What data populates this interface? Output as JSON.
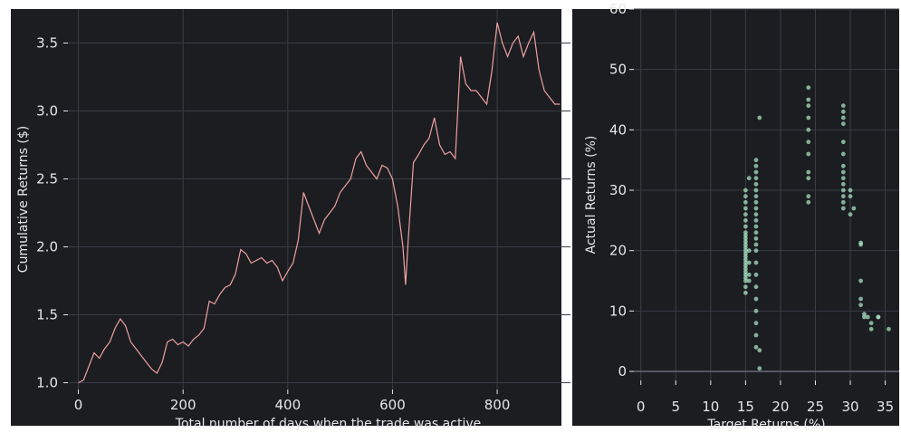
{
  "theme": {
    "panel_bg": "#1b1d21",
    "grid": "#3a3d44",
    "text": "#e6e6e6",
    "line_color": "#f0a0a0",
    "scatter_color": "#a8e0c0"
  },
  "chart_data": [
    {
      "type": "line",
      "xlabel": "Total number of days when the trade was active",
      "ylabel": "Cumulative Returns ($)",
      "xlim": [
        -20,
        940
      ],
      "ylim": [
        0.95,
        3.75
      ],
      "xticks": [
        0,
        200,
        400,
        600,
        800
      ],
      "yticks": [
        1.0,
        1.5,
        2.0,
        2.5,
        3.0,
        3.5
      ],
      "xticklabels": [
        "0",
        "200",
        "400",
        "600",
        "800"
      ],
      "yticklabels": [
        "1.0",
        "1.5",
        "2.0",
        "2.5",
        "3.0",
        "3.5"
      ],
      "grid": true,
      "series": [
        {
          "x": [
            0,
            10,
            20,
            30,
            40,
            50,
            60,
            70,
            80,
            90,
            100,
            110,
            120,
            130,
            140,
            150,
            160,
            170,
            180,
            190,
            200,
            210,
            220,
            230,
            240,
            250,
            260,
            270,
            280,
            290,
            300,
            310,
            320,
            330,
            340,
            350,
            360,
            370,
            380,
            390,
            400,
            410,
            420,
            430,
            440,
            450,
            460,
            470,
            480,
            490,
            500,
            510,
            520,
            530,
            540,
            550,
            560,
            570,
            580,
            590,
            600,
            610,
            620,
            625,
            630,
            640,
            650,
            660,
            670,
            680,
            690,
            700,
            710,
            720,
            730,
            740,
            750,
            760,
            770,
            780,
            790,
            800,
            810,
            820,
            830,
            840,
            850,
            860,
            870,
            880,
            890,
            900,
            910,
            920
          ],
          "y": [
            1.0,
            1.02,
            1.12,
            1.22,
            1.18,
            1.25,
            1.3,
            1.4,
            1.47,
            1.42,
            1.3,
            1.25,
            1.2,
            1.15,
            1.1,
            1.07,
            1.15,
            1.3,
            1.32,
            1.28,
            1.3,
            1.27,
            1.32,
            1.35,
            1.4,
            1.6,
            1.58,
            1.65,
            1.7,
            1.72,
            1.8,
            1.98,
            1.95,
            1.88,
            1.9,
            1.92,
            1.88,
            1.9,
            1.85,
            1.75,
            1.82,
            1.88,
            2.05,
            2.4,
            2.3,
            2.2,
            2.1,
            2.2,
            2.25,
            2.3,
            2.4,
            2.45,
            2.5,
            2.65,
            2.7,
            2.6,
            2.55,
            2.5,
            2.6,
            2.58,
            2.5,
            2.3,
            2.0,
            1.72,
            2.05,
            2.62,
            2.68,
            2.75,
            2.8,
            2.95,
            2.75,
            2.68,
            2.7,
            2.65,
            3.4,
            3.2,
            3.15,
            3.15,
            3.1,
            3.05,
            3.3,
            3.65,
            3.5,
            3.4,
            3.5,
            3.55,
            3.4,
            3.5,
            3.58,
            3.3,
            3.15,
            3.1,
            3.05,
            3.05
          ],
          "color": "#f0a0a0"
        }
      ]
    },
    {
      "type": "scatter",
      "xlabel": "Target Returns (%)",
      "ylabel": "Actual Returns (%)",
      "xlim": [
        -1,
        37
      ],
      "ylim": [
        -1.5,
        60
      ],
      "xticks": [
        0,
        5,
        10,
        15,
        20,
        25,
        30,
        35
      ],
      "yticks": [
        0,
        10,
        20,
        30,
        40,
        50,
        60
      ],
      "xticklabels": [
        "0",
        "5",
        "10",
        "15",
        "20",
        "25",
        "30",
        "35"
      ],
      "yticklabels": [
        "0",
        "10",
        "20",
        "30",
        "40",
        "50",
        "60"
      ],
      "grid": true,
      "series": [
        {
          "x": [
            15,
            15,
            15,
            15,
            15,
            15,
            15,
            15,
            15,
            15,
            15,
            15,
            15,
            15,
            15,
            15,
            15,
            15,
            15,
            15,
            15,
            15,
            15,
            15,
            15,
            15,
            15.5,
            15.5,
            15.5,
            15.5,
            15.5,
            16.5,
            16.5,
            16.5,
            16.5,
            16.5,
            16.5,
            16.5,
            16.5,
            16.5,
            16.5,
            16.5,
            16.5,
            16.5,
            16.5,
            16.5,
            16.5,
            16.5,
            16.5,
            16.5,
            16.5,
            16.5,
            16.5,
            16.5,
            16.5,
            17,
            17,
            17,
            24,
            24,
            24,
            24,
            24,
            24,
            24,
            24,
            24,
            24,
            24,
            29,
            29,
            29,
            29,
            29,
            29,
            29,
            29,
            29,
            29,
            29,
            29,
            29,
            29,
            30,
            30,
            30,
            30.5,
            31.5,
            31.5,
            31.5,
            31.5,
            31.5,
            32,
            32,
            32.5,
            33,
            33,
            34,
            34,
            35.5
          ],
          "y": [
            13,
            14,
            15,
            15.5,
            16,
            16.5,
            17,
            17.5,
            18,
            18.5,
            19,
            19.5,
            20,
            20.5,
            21,
            21.5,
            22,
            22.5,
            23,
            24,
            25,
            26,
            27,
            28,
            29,
            30,
            15,
            16,
            18,
            20,
            32,
            4,
            6,
            8,
            10,
            12,
            14,
            16,
            18,
            20,
            21,
            22,
            23,
            24,
            25,
            26,
            27,
            28,
            29,
            30,
            31,
            32,
            33,
            34,
            35,
            0.5,
            3.5,
            42,
            28,
            29,
            32,
            33,
            36,
            38,
            40,
            42,
            44,
            45,
            47,
            27,
            28,
            29,
            30,
            31,
            32,
            33,
            34,
            36,
            38,
            41,
            42,
            43,
            44,
            26,
            29,
            30,
            27,
            21,
            21.3,
            15,
            12,
            11,
            9.5,
            9,
            9,
            8,
            7,
            9,
            9,
            7
          ],
          "color": "#a8e0c0"
        }
      ]
    }
  ]
}
